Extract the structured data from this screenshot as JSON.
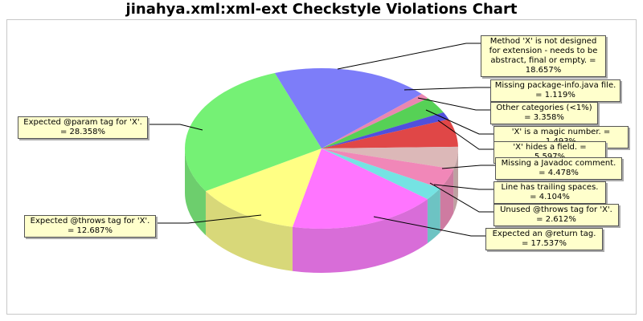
{
  "title": "jinahya.xml:xml-ext Checkstyle Violations Chart",
  "chart_data": {
    "type": "pie",
    "title": "jinahya.xml:xml-ext Checkstyle Violations Chart",
    "slices": [
      {
        "label": "Method 'X' is not designed for extension - needs to be abstract, final or empty. = 18.657%",
        "value": 18.657,
        "color": "#6f6ff8"
      },
      {
        "label": "Missing package-info.java file. = 1.119%",
        "value": 1.119,
        "color": "#e87aa8"
      },
      {
        "label": "Other categories (<1%) = 3.358%",
        "value": 3.358,
        "color": "#44cc44"
      },
      {
        "label": "'X' is a magic number. = 1.493%",
        "value": 1.493,
        "color": "#3d3dd8"
      },
      {
        "label": "'X' hides a field. = 5.597%",
        "value": 5.597,
        "color": "#dd3333"
      },
      {
        "label": "Missing a Javadoc comment. = 4.478%",
        "value": 4.478,
        "color": "#d8b0b0"
      },
      {
        "label": "Line has trailing spaces. = 4.104%",
        "value": 4.104,
        "color": "#f07ab0"
      },
      {
        "label": "Unused @throws tag for 'X'. = 2.612%",
        "value": 2.612,
        "color": "#66e0e0"
      },
      {
        "label": "Expected an @return tag. = 17.537%",
        "value": 17.537,
        "color": "#ff66ff"
      },
      {
        "label": "Expected @throws tag for 'X'. = 12.687%",
        "value": 12.687,
        "color": "#ffff77"
      },
      {
        "label": "Expected @param tag for 'X'. = 28.358%",
        "value": 28.358,
        "color": "#66f066"
      }
    ],
    "legend": "none",
    "style": "3d"
  }
}
